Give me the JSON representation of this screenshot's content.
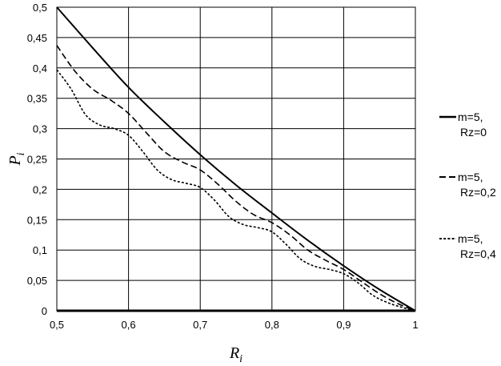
{
  "chart_data": {
    "type": "line",
    "xlabel": {
      "main": "R",
      "sub": "i"
    },
    "ylabel": {
      "main": "P",
      "sub": "i"
    },
    "xlim": [
      0.5,
      1
    ],
    "ylim": [
      0,
      0.5
    ],
    "x_ticks": [
      0.5,
      0.6,
      0.7,
      0.8,
      0.9,
      1
    ],
    "x_tick_labels": [
      "0,5",
      "0,6",
      "0,7",
      "0,8",
      "0,9",
      "1"
    ],
    "y_ticks": [
      0,
      0.05,
      0.1,
      0.15,
      0.2,
      0.25,
      0.3,
      0.35,
      0.4,
      0.45,
      0.5
    ],
    "y_tick_labels": [
      "0",
      "0,05",
      "0,1",
      "0,15",
      "0,2",
      "0,25",
      "0,3",
      "0,35",
      "0,4",
      "0,45",
      "0,5"
    ],
    "grid": true,
    "legend_position": "right",
    "series": [
      {
        "name": "m=5, Rz=0",
        "legend_lines": [
          "m=5,",
          "Rz=0"
        ],
        "style": "solid",
        "x": [
          0.5,
          0.55,
          0.6,
          0.65,
          0.7,
          0.75,
          0.8,
          0.85,
          0.9,
          0.95,
          1.0
        ],
        "y": [
          0.5,
          0.433,
          0.368,
          0.311,
          0.257,
          0.207,
          0.161,
          0.116,
          0.074,
          0.035,
          0.0
        ]
      },
      {
        "name": "m=5, Rz=0,2",
        "legend_lines": [
          "m=5,",
          "Rz=0,2"
        ],
        "style": "dashed",
        "x": [
          0.5,
          0.525,
          0.55,
          0.575,
          0.6,
          0.625,
          0.65,
          0.675,
          0.7,
          0.725,
          0.75,
          0.775,
          0.8,
          0.825,
          0.85,
          0.875,
          0.9,
          0.925,
          0.95,
          0.975,
          1.0
        ],
        "y": [
          0.437,
          0.395,
          0.365,
          0.347,
          0.325,
          0.293,
          0.262,
          0.245,
          0.232,
          0.208,
          0.18,
          0.158,
          0.145,
          0.125,
          0.1,
          0.083,
          0.068,
          0.048,
          0.028,
          0.012,
          0.0
        ]
      },
      {
        "name": "m=5, Rz=0,4",
        "legend_lines": [
          "m=5,",
          "Rz=0,4"
        ],
        "style": "dotted",
        "x": [
          0.5,
          0.52,
          0.54,
          0.56,
          0.58,
          0.6,
          0.62,
          0.64,
          0.66,
          0.68,
          0.7,
          0.72,
          0.74,
          0.76,
          0.78,
          0.8,
          0.82,
          0.84,
          0.86,
          0.88,
          0.9,
          0.92,
          0.94,
          0.96,
          0.98,
          1.0
        ],
        "y": [
          0.397,
          0.365,
          0.323,
          0.306,
          0.3,
          0.289,
          0.262,
          0.232,
          0.216,
          0.21,
          0.203,
          0.182,
          0.155,
          0.142,
          0.137,
          0.13,
          0.109,
          0.085,
          0.073,
          0.068,
          0.061,
          0.046,
          0.026,
          0.014,
          0.006,
          0.0
        ]
      }
    ]
  }
}
